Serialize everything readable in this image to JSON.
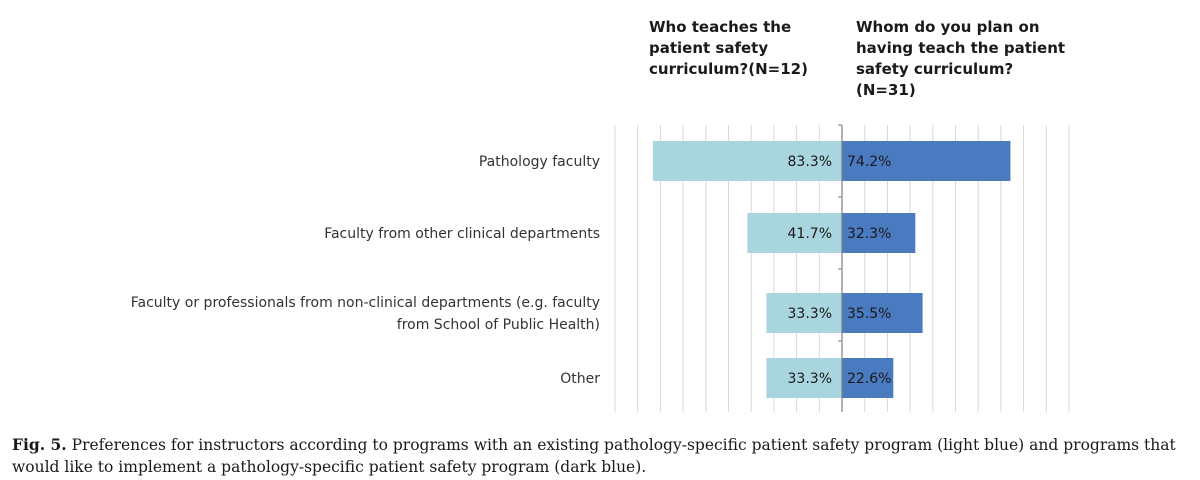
{
  "chart_data": {
    "type": "bar",
    "orientation": "horizontal-diverging",
    "categories": [
      "Pathology faculty",
      "Faculty from other clinical departments",
      "Faculty or professionals from non-clinical departments (e.g. faculty from School of Public Health)",
      "Other"
    ],
    "category_lines": [
      [
        "Pathology faculty"
      ],
      [
        "Faculty from other clinical departments"
      ],
      [
        "Faculty or professionals from non-clinical departments (e.g. faculty",
        "from School of Public Health)"
      ],
      [
        "Other"
      ]
    ],
    "series": [
      {
        "name": "Who teaches the patient safety curriculum?(N=12)",
        "side": "left",
        "color": "#a9d5df",
        "values": [
          83.3,
          41.7,
          33.3,
          33.3
        ],
        "labels": [
          "83.3%",
          "41.7%",
          "33.3%",
          "33.3%"
        ]
      },
      {
        "name": "Whom do you plan on having teach the patient safety curriculum? (N=31)",
        "side": "right",
        "color": "#4a7ac0",
        "values": [
          74.2,
          32.3,
          35.5,
          22.6
        ],
        "labels": [
          "74.2%",
          "32.3%",
          "35.5%",
          "22.6%"
        ]
      }
    ],
    "xlim": [
      0,
      100
    ],
    "grid": true
  },
  "headers": {
    "left": "Who teaches the\npatient safety\ncurriculum?(N=12)",
    "right": "Whom do you plan on\nhaving teach the patient\nsafety curriculum? (N=31)"
  },
  "caption": {
    "label": "Fig. 5.",
    "text": "Preferences for instructors according to programs with an existing pathology-specific patient safety program (light blue) and programs that would like to implement a pathology-specific patient safety program (dark blue)."
  }
}
